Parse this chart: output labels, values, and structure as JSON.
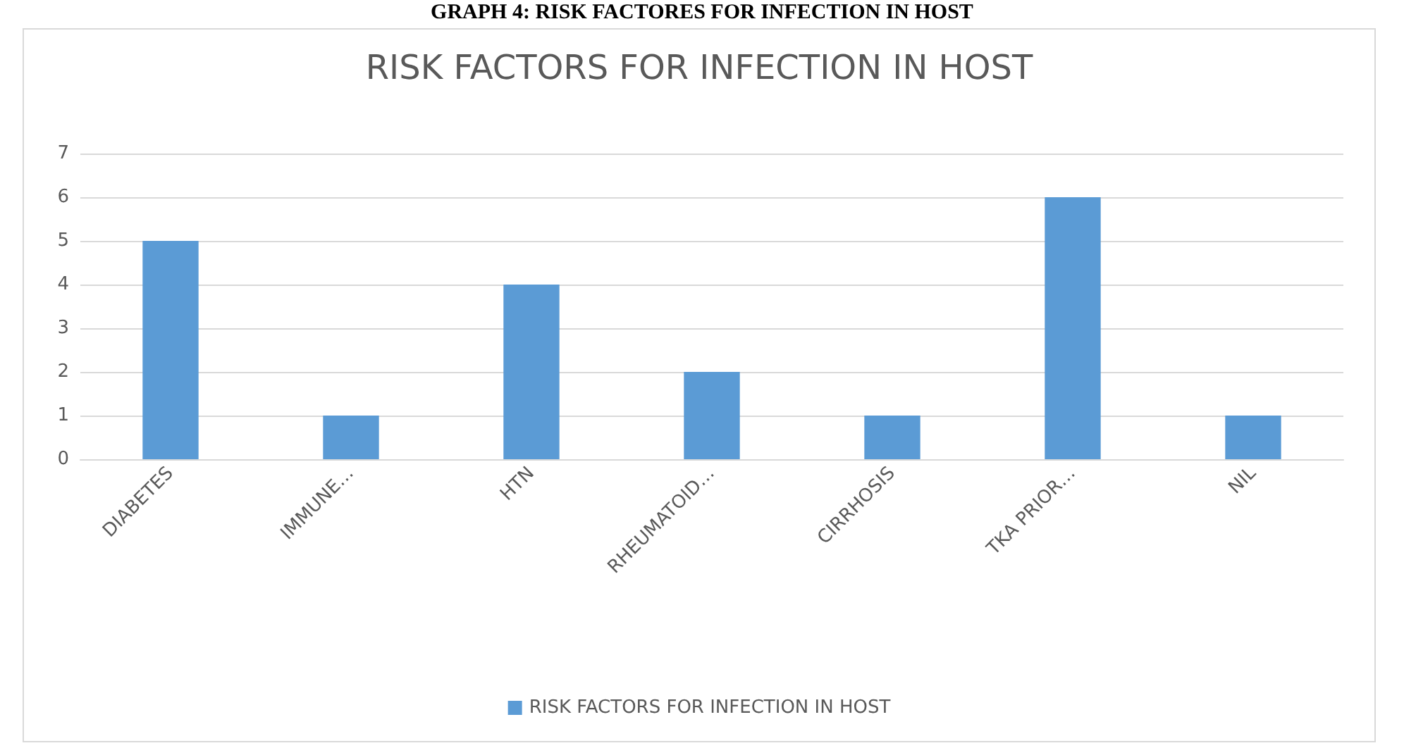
{
  "chart_data": {
    "type": "bar",
    "title": "RISK FACTORS FOR INFECTION IN HOST",
    "annotations": [
      "GRAPH 4: RISK FACTORES FOR INFECTION IN HOST"
    ],
    "categories": [
      "DIABETES",
      "IMMUNE…",
      "HTN",
      "RHEUMATOID…",
      "CIRRHOSIS",
      "TKA PRIOR…",
      "NIL"
    ],
    "series": [
      {
        "name": "RISK FACTORS FOR INFECTION IN HOST",
        "color": "#5b9bd5",
        "values": [
          5,
          1,
          4,
          2,
          1,
          6,
          1
        ]
      }
    ],
    "ylim": [
      0,
      7
    ],
    "yticks": [
      0,
      1,
      2,
      3,
      4,
      5,
      6,
      7
    ],
    "grid": "y",
    "legend": "bottom"
  }
}
